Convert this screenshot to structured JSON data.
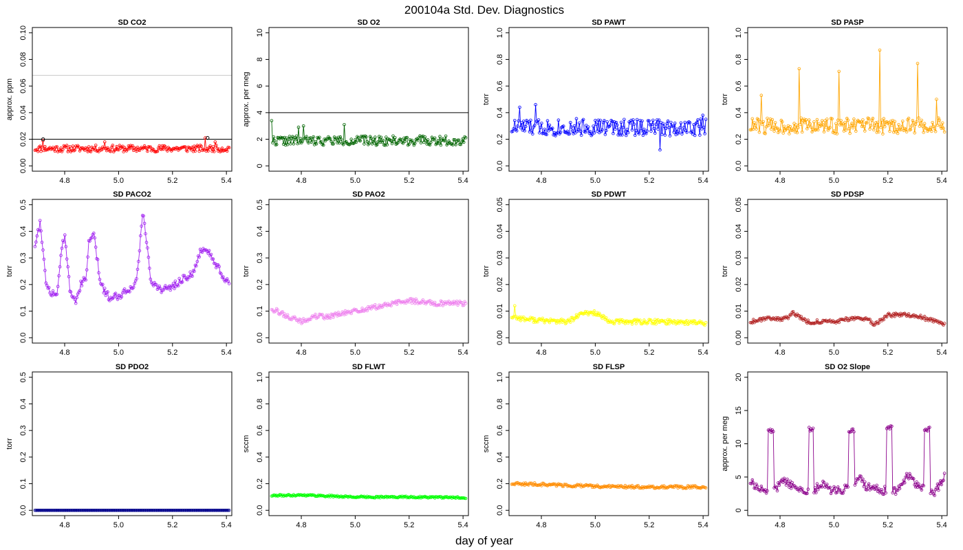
{
  "figure": {
    "title": "200104a   Std. Dev. Diagnostics",
    "xlabel": "day of year"
  },
  "chart_data": [
    {
      "type": "line",
      "title": "SD CO2",
      "ylabel": "approx. ppm",
      "xlim": [
        4.68,
        5.42
      ],
      "ylim": [
        0,
        0.1
      ],
      "yticks": [
        "0.00",
        "0.02",
        "0.04",
        "0.06",
        "0.08",
        "0.10"
      ],
      "xticks": [
        "4.8",
        "5.0",
        "5.2",
        "5.4"
      ],
      "color": "#ff0000",
      "seed": 11,
      "x_start": 4.69,
      "x_end": 5.41,
      "n_points": 196,
      "base": 0.013,
      "noise": 0.0025,
      "spikes": [
        [
          4.72,
          0.019
        ],
        [
          4.95,
          0.018
        ],
        [
          5.32,
          0.021
        ],
        [
          5.36,
          0.018
        ]
      ],
      "hlines": [
        {
          "y": 0.02,
          "color": "#000000"
        },
        {
          "y": 0.068,
          "color": "#c8c8c8"
        }
      ],
      "highlight": [
        [
          4.72,
          0.02
        ],
        [
          5.33,
          0.021
        ]
      ]
    },
    {
      "type": "line",
      "title": "SD O2",
      "ylabel": "approx. per meg",
      "xlim": [
        4.68,
        5.42
      ],
      "ylim": [
        0,
        10
      ],
      "yticks": [
        "0",
        "2",
        "4",
        "6",
        "8",
        "10"
      ],
      "xticks": [
        "4.8",
        "5.0",
        "5.2",
        "5.4"
      ],
      "color": "#006400",
      "seed": 22,
      "x_start": 4.69,
      "x_end": 5.41,
      "n_points": 196,
      "base": 1.9,
      "noise": 0.35,
      "spikes": [
        [
          4.69,
          3.4
        ],
        [
          4.79,
          2.9
        ],
        [
          4.81,
          3.0
        ],
        [
          4.96,
          3.1
        ]
      ],
      "hlines": [
        {
          "y": 4,
          "color": "#000000"
        }
      ]
    },
    {
      "type": "line",
      "title": "SD PAWT",
      "ylabel": "torr",
      "xlim": [
        4.68,
        5.42
      ],
      "ylim": [
        0,
        1
      ],
      "yticks": [
        "0.0",
        "0.2",
        "0.4",
        "0.6",
        "0.8",
        "1.0"
      ],
      "xticks": [
        "4.8",
        "5.0",
        "5.2",
        "5.4"
      ],
      "color": "#0000ff",
      "seed": 33,
      "x_start": 4.69,
      "x_end": 5.41,
      "n_points": 196,
      "base": 0.29,
      "noise": 0.065,
      "spikes": [
        [
          4.78,
          0.46
        ],
        [
          4.72,
          0.44
        ],
        [
          5.4,
          0.38
        ],
        [
          5.24,
          0.12
        ]
      ]
    },
    {
      "type": "line",
      "title": "SD PASP",
      "ylabel": "torr",
      "xlim": [
        4.68,
        5.42
      ],
      "ylim": [
        0,
        1
      ],
      "yticks": [
        "0.0",
        "0.2",
        "0.4",
        "0.6",
        "0.8",
        "1.0"
      ],
      "xticks": [
        "4.8",
        "5.0",
        "5.2",
        "5.4"
      ],
      "color": "#ffa500",
      "seed": 44,
      "x_start": 4.69,
      "x_end": 5.41,
      "n_points": 196,
      "base": 0.3,
      "noise": 0.06,
      "spikes": [
        [
          4.73,
          0.53
        ],
        [
          4.87,
          0.73
        ],
        [
          5.02,
          0.71
        ],
        [
          5.17,
          0.87
        ],
        [
          5.31,
          0.77
        ],
        [
          5.38,
          0.5
        ]
      ]
    },
    {
      "type": "line",
      "title": "SD PACO2",
      "ylabel": "torr",
      "xlim": [
        4.68,
        5.42
      ],
      "ylim": [
        0,
        0.5
      ],
      "yticks": [
        "0.0",
        "0.1",
        "0.2",
        "0.3",
        "0.4",
        "0.5"
      ],
      "xticks": [
        "4.8",
        "5.0",
        "5.2",
        "5.4"
      ],
      "color": "#a020f0",
      "seed": 55,
      "x_start": 4.69,
      "x_end": 5.41,
      "n_points": 196,
      "profile": [
        [
          4.69,
          0.35
        ],
        [
          4.71,
          0.44
        ],
        [
          4.73,
          0.21
        ],
        [
          4.75,
          0.17
        ],
        [
          4.77,
          0.16
        ],
        [
          4.79,
          0.33
        ],
        [
          4.8,
          0.39
        ],
        [
          4.82,
          0.17
        ],
        [
          4.84,
          0.14
        ],
        [
          4.86,
          0.2
        ],
        [
          4.88,
          0.22
        ],
        [
          4.89,
          0.37
        ],
        [
          4.91,
          0.38
        ],
        [
          4.93,
          0.22
        ],
        [
          4.95,
          0.17
        ],
        [
          4.97,
          0.15
        ],
        [
          5.0,
          0.16
        ],
        [
          5.02,
          0.17
        ],
        [
          5.05,
          0.19
        ],
        [
          5.07,
          0.24
        ],
        [
          5.09,
          0.48
        ],
        [
          5.1,
          0.39
        ],
        [
          5.12,
          0.22
        ],
        [
          5.14,
          0.19
        ],
        [
          5.18,
          0.18
        ],
        [
          5.21,
          0.2
        ],
        [
          5.25,
          0.23
        ],
        [
          5.28,
          0.24
        ],
        [
          5.3,
          0.32
        ],
        [
          5.32,
          0.34
        ],
        [
          5.35,
          0.29
        ],
        [
          5.37,
          0.26
        ],
        [
          5.39,
          0.21
        ],
        [
          5.41,
          0.21
        ]
      ],
      "noise": 0.015
    },
    {
      "type": "line",
      "title": "SD PAO2",
      "ylabel": "torr",
      "xlim": [
        4.68,
        5.42
      ],
      "ylim": [
        0,
        0.5
      ],
      "yticks": [
        "0.0",
        "0.1",
        "0.2",
        "0.3",
        "0.4",
        "0.5"
      ],
      "xticks": [
        "4.8",
        "5.0",
        "5.2",
        "5.4"
      ],
      "color": "#ee82ee",
      "seed": 66,
      "x_start": 4.69,
      "x_end": 5.41,
      "n_points": 196,
      "profile": [
        [
          4.69,
          0.11
        ],
        [
          4.75,
          0.08
        ],
        [
          4.8,
          0.06
        ],
        [
          4.85,
          0.08
        ],
        [
          4.9,
          0.08
        ],
        [
          5.0,
          0.1
        ],
        [
          5.1,
          0.12
        ],
        [
          5.2,
          0.14
        ],
        [
          5.3,
          0.13
        ],
        [
          5.41,
          0.13
        ]
      ],
      "noise": 0.009
    },
    {
      "type": "line",
      "title": "SD PDWT",
      "ylabel": "torr",
      "xlim": [
        4.68,
        5.42
      ],
      "ylim": [
        0,
        0.05
      ],
      "yticks": [
        "0.00",
        "0.01",
        "0.02",
        "0.03",
        "0.04",
        "0.05"
      ],
      "xticks": [
        "4.8",
        "5.0",
        "5.2",
        "5.4"
      ],
      "color": "#ffff00",
      "seed": 77,
      "x_start": 4.69,
      "x_end": 5.41,
      "n_points": 196,
      "profile": [
        [
          4.69,
          0.008
        ],
        [
          4.74,
          0.007
        ],
        [
          4.8,
          0.0065
        ],
        [
          4.9,
          0.006
        ],
        [
          4.95,
          0.009
        ],
        [
          5.0,
          0.0095
        ],
        [
          5.05,
          0.006
        ],
        [
          5.1,
          0.006
        ],
        [
          5.3,
          0.006
        ],
        [
          5.41,
          0.0055
        ]
      ],
      "noise": 0.0009,
      "spikes": [
        [
          4.7,
          0.012
        ]
      ]
    },
    {
      "type": "line",
      "title": "SD PDSP",
      "ylabel": "torr",
      "xlim": [
        4.68,
        5.42
      ],
      "ylim": [
        0,
        0.05
      ],
      "yticks": [
        "0.00",
        "0.01",
        "0.02",
        "0.03",
        "0.04",
        "0.05"
      ],
      "xticks": [
        "4.8",
        "5.0",
        "5.2",
        "5.4"
      ],
      "color": "#b22222",
      "seed": 88,
      "x_start": 4.69,
      "x_end": 5.41,
      "n_points": 196,
      "profile": [
        [
          4.69,
          0.006
        ],
        [
          4.75,
          0.0075
        ],
        [
          4.82,
          0.007
        ],
        [
          4.85,
          0.0095
        ],
        [
          4.9,
          0.006
        ],
        [
          5.0,
          0.006
        ],
        [
          5.08,
          0.0075
        ],
        [
          5.13,
          0.0065
        ],
        [
          5.15,
          0.005
        ],
        [
          5.2,
          0.0085
        ],
        [
          5.3,
          0.0085
        ],
        [
          5.41,
          0.005
        ]
      ],
      "noise": 0.0007
    },
    {
      "type": "line",
      "title": "SD PDO2",
      "ylabel": "torr",
      "xlim": [
        4.68,
        5.42
      ],
      "ylim": [
        0,
        0.5
      ],
      "yticks": [
        "0.0",
        "0.1",
        "0.2",
        "0.3",
        "0.4",
        "0.5"
      ],
      "xticks": [
        "4.8",
        "5.0",
        "5.2",
        "5.4"
      ],
      "color": "#00008b",
      "seed": 99,
      "x_start": 4.69,
      "x_end": 5.41,
      "n_points": 196,
      "base": 0.0,
      "noise": 0.0
    },
    {
      "type": "line",
      "title": "SD FLWT",
      "ylabel": "sccm",
      "xlim": [
        4.68,
        5.42
      ],
      "ylim": [
        0,
        1
      ],
      "yticks": [
        "0.0",
        "0.2",
        "0.4",
        "0.6",
        "0.8",
        "1.0"
      ],
      "xticks": [
        "4.8",
        "5.0",
        "5.2",
        "5.4"
      ],
      "color": "#00ff00",
      "seed": 111,
      "x_start": 4.69,
      "x_end": 5.41,
      "n_points": 196,
      "profile": [
        [
          4.69,
          0.11
        ],
        [
          4.8,
          0.115
        ],
        [
          5.0,
          0.1
        ],
        [
          5.2,
          0.1
        ],
        [
          5.41,
          0.095
        ]
      ],
      "noise": 0.006
    },
    {
      "type": "line",
      "title": "SD FLSP",
      "ylabel": "sccm",
      "xlim": [
        4.68,
        5.42
      ],
      "ylim": [
        0,
        1
      ],
      "yticks": [
        "0.0",
        "0.2",
        "0.4",
        "0.6",
        "0.8",
        "1.0"
      ],
      "xticks": [
        "4.8",
        "5.0",
        "5.2",
        "5.4"
      ],
      "color": "#ff8c00",
      "seed": 122,
      "x_start": 4.69,
      "x_end": 5.41,
      "n_points": 196,
      "profile": [
        [
          4.69,
          0.2
        ],
        [
          4.8,
          0.195
        ],
        [
          5.0,
          0.18
        ],
        [
          5.2,
          0.175
        ],
        [
          5.41,
          0.175
        ]
      ],
      "noise": 0.01
    },
    {
      "type": "line",
      "title": "SD O2 Slope",
      "ylabel": "approx. per meg",
      "xlim": [
        4.68,
        5.42
      ],
      "ylim": [
        0,
        20
      ],
      "yticks": [
        "0",
        "5",
        "10",
        "15",
        "20"
      ],
      "xticks": [
        "4.8",
        "5.0",
        "5.2",
        "5.4"
      ],
      "color": "#8b008b",
      "seed": 133,
      "x_start": 4.69,
      "x_end": 5.41,
      "n_points": 196,
      "profile": [
        [
          4.69,
          4.3
        ],
        [
          4.72,
          3.5
        ],
        [
          4.74,
          3.0
        ],
        [
          4.79,
          3.5
        ],
        [
          4.81,
          4.8
        ],
        [
          4.85,
          3.5
        ],
        [
          4.88,
          3.0
        ],
        [
          4.93,
          3.0
        ],
        [
          4.95,
          4.2
        ],
        [
          4.99,
          3.0
        ],
        [
          5.03,
          3.0
        ],
        [
          5.08,
          4.3
        ],
        [
          5.1,
          4.8
        ],
        [
          5.12,
          3.5
        ],
        [
          5.18,
          3.0
        ],
        [
          5.23,
          3.0
        ],
        [
          5.25,
          4.0
        ],
        [
          5.28,
          5.5
        ],
        [
          5.31,
          3.5
        ],
        [
          5.37,
          2.5
        ],
        [
          5.41,
          5.0
        ]
      ],
      "noise": 0.6,
      "bursts": [
        [
          4.755,
          4.775,
          12.0
        ],
        [
          4.905,
          4.925,
          12.2
        ],
        [
          5.055,
          5.075,
          12.0
        ],
        [
          5.195,
          5.215,
          12.4
        ],
        [
          5.335,
          5.355,
          12.2
        ]
      ]
    }
  ]
}
